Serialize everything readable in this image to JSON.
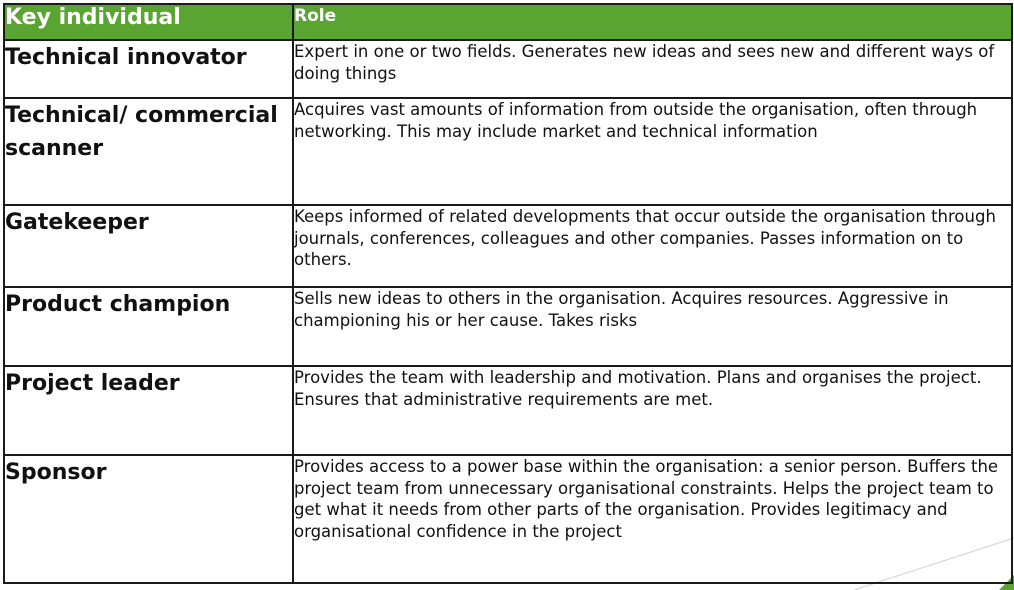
{
  "table": {
    "headers": [
      "Key individual",
      "Role"
    ],
    "rows": [
      {
        "key": "Technical innovator",
        "role": "Expert in one or two fields. Generates new ideas and sees new and different ways of doing things"
      },
      {
        "key": "Technical/ commercial scanner",
        "role": "Acquires vast amounts of information from outside the organisation, often through networking. This may include market and technical information"
      },
      {
        "key": "Gatekeeper",
        "role": "Keeps informed of related developments that occur outside the organisation through journals, conferences, colleagues and other companies. Passes information on to others."
      },
      {
        "key": "Product champion",
        "role": "Sells new ideas to others in the organisation. Acquires resources. Aggressive in championing his or her cause. Takes risks"
      },
      {
        "key": "Project leader",
        "role": "Provides the team with leadership and motivation. Plans and organises the project. Ensures that administrative requirements are met."
      },
      {
        "key": "Sponsor",
        "role": "Provides access to a power base within the organisation: a senior person. Buffers the project team from unnecessary organisational constraints. Helps the project team to get what it needs from other parts of the organisation. Provides legitimacy and organisational confidence in the project"
      }
    ]
  },
  "colors": {
    "header_bg": "#5aa532",
    "header_text": "#ffffff",
    "border": "#1a1a1a"
  }
}
